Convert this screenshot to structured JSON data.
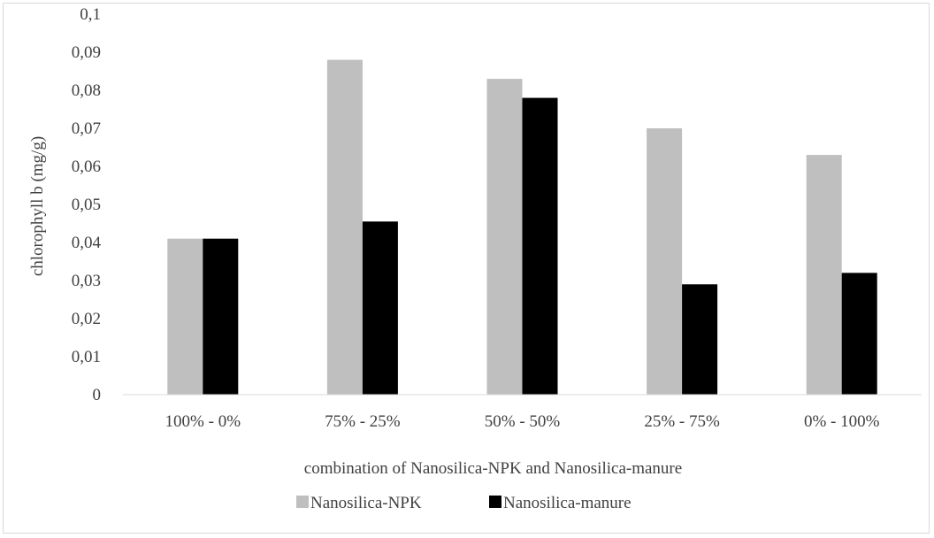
{
  "chart_data": {
    "type": "bar",
    "title": "",
    "xlabel": "combination of Nanosilica-NPK and Nanosilica-manure",
    "ylabel": "chlorophyll b (mg/g)",
    "ylim": [
      0,
      0.1
    ],
    "yticks": [
      "0",
      "0,01",
      "0,02",
      "0,03",
      "0,04",
      "0,05",
      "0,06",
      "0,07",
      "0,08",
      "0,09",
      "0,1"
    ],
    "grid": false,
    "legend_position": "bottom",
    "categories": [
      "100% - 0%",
      "75% - 25%",
      "50% - 50%",
      "25% - 75%",
      "0% - 100%"
    ],
    "series": [
      {
        "name": "Nanosilica-NPK",
        "color": "#bfbfbf",
        "values": [
          0.041,
          0.088,
          0.083,
          0.07,
          0.063
        ]
      },
      {
        "name": "Nanosilica-manure",
        "color": "#000000",
        "values": [
          0.041,
          0.0455,
          0.078,
          0.029,
          0.032
        ]
      }
    ]
  }
}
